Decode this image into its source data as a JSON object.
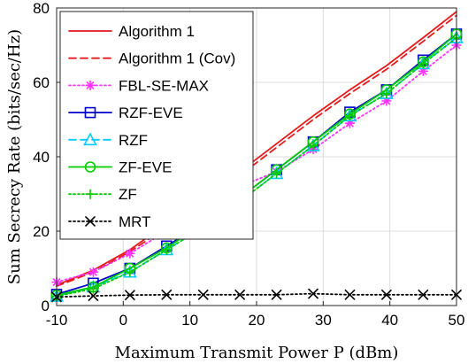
{
  "chart_data": {
    "type": "line",
    "xlabel": "Maximum Transmit Power P (dBm)",
    "ylabel": "Sum Secrecy Rate (bits/sec/Hz)",
    "xlim": [
      -10,
      50
    ],
    "ylim": [
      0,
      80
    ],
    "xticks": [
      -10,
      0,
      10,
      20,
      30,
      40,
      50
    ],
    "yticks": [
      0,
      20,
      40,
      60,
      80
    ],
    "xtick_labels": [
      "-10",
      "0",
      "10",
      "20",
      "30",
      "40",
      "50"
    ],
    "ytick_labels": [
      "0",
      "20",
      "40",
      "60",
      "80"
    ],
    "grid": true,
    "legend_position": "top-left",
    "x": [
      -10,
      -4.5,
      1,
      6.5,
      12,
      17.5,
      23,
      28.5,
      34,
      39.5,
      45,
      50
    ],
    "series": [
      {
        "name": "Algorithm 1",
        "color": "#e41a1c",
        "dash": "solid",
        "marker": "none",
        "values": [
          5.5,
          9.5,
          15,
          22,
          29,
          36,
          43.5,
          51,
          58,
          64.5,
          72,
          79
        ]
      },
      {
        "name": "Algorithm 1 (Cov)",
        "color": "#e41a1c",
        "dash": "dashed",
        "marker": "none",
        "values": [
          5.2,
          9,
          14.5,
          21,
          28,
          35,
          42.5,
          50,
          57,
          63.5,
          71,
          78
        ]
      },
      {
        "name": "FBL-SE-MAX",
        "color": "#ff33ff",
        "dash": "dotted",
        "marker": "asterisk",
        "values": [
          6.3,
          9,
          14,
          20,
          25,
          32,
          36,
          42,
          49,
          55,
          63,
          70
        ]
      },
      {
        "name": "RZF-EVE",
        "color": "#0000cc",
        "dash": "solid",
        "marker": "square",
        "values": [
          3,
          6,
          10,
          16,
          22,
          29,
          36.5,
          44,
          52,
          58,
          66,
          73
        ]
      },
      {
        "name": "RZF",
        "color": "#00ccff",
        "dash": "dashed",
        "marker": "triangle",
        "values": [
          2.5,
          5,
          9,
          15,
          21,
          28,
          35.5,
          43,
          51,
          57,
          65,
          72
        ]
      },
      {
        "name": "ZF-EVE",
        "color": "#00cc00",
        "dash": "solid",
        "marker": "circle",
        "values": [
          2.8,
          5,
          10,
          15.5,
          22,
          29,
          36.5,
          44,
          51.5,
          58,
          65.5,
          73
        ]
      },
      {
        "name": "ZF",
        "color": "#00cc00",
        "dash": "dotted",
        "marker": "plus",
        "values": [
          2.5,
          4.5,
          9,
          15,
          21,
          28,
          35.5,
          43,
          51,
          57,
          65,
          72
        ]
      },
      {
        "name": "MRT",
        "color": "#000000",
        "dash": "dotted",
        "marker": "x",
        "values": [
          2.3,
          2.6,
          2.8,
          2.9,
          2.9,
          2.9,
          2.9,
          3.2,
          2.9,
          2.9,
          2.9,
          2.9
        ]
      }
    ]
  }
}
